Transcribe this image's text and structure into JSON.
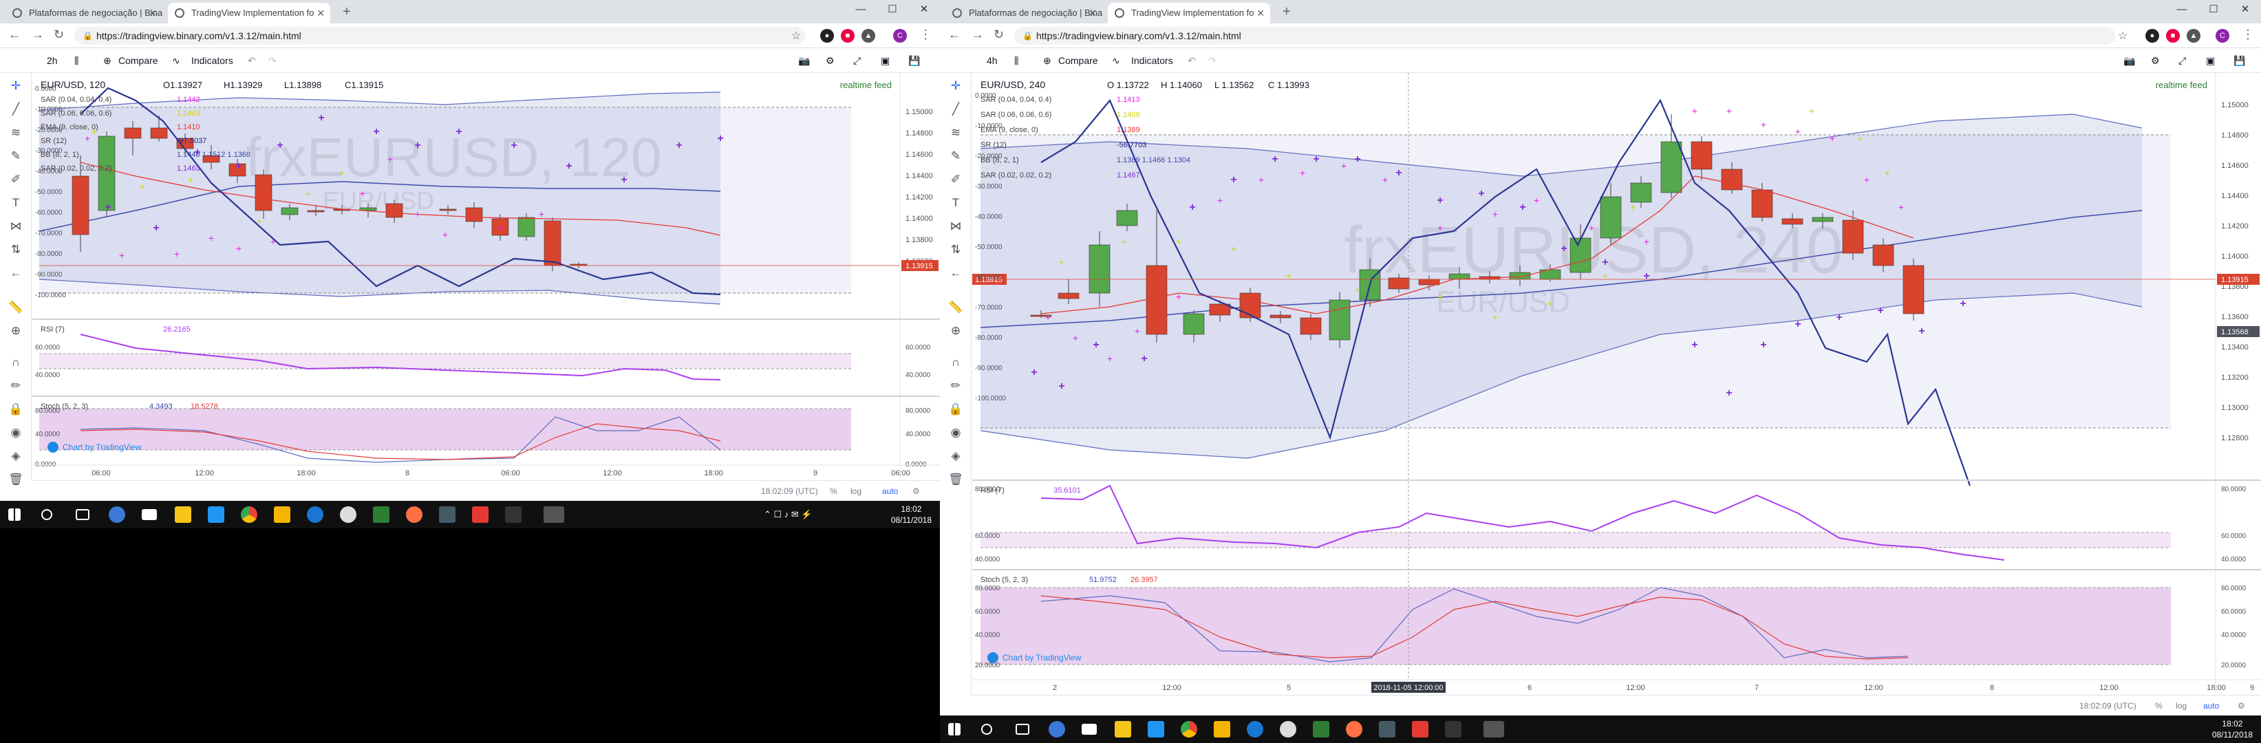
{
  "tabs_common": [
    {
      "title": "Plataformas de negociação | Bina"
    },
    {
      "title": "TradingView Implementation fo"
    }
  ],
  "url": "https://tradingview.binary.com/v1.3.12/main.html",
  "toolbar_labels": {
    "compare": "Compare",
    "indicators": "Indicators"
  },
  "left": {
    "timeframe": "2h",
    "symbol_line": "EUR/USD, 120",
    "ohlc": {
      "o": "O1.13927",
      "h": "H1.13929",
      "l": "L1.13898",
      "c": "C1.13915"
    },
    "realtime": "realtime feed",
    "watermark": "frxEURUSD, 120",
    "watermark_sub": "EUR/USD",
    "legend": [
      {
        "label": "SAR (0.04, 0.04, 0.4)",
        "value": "1.1442",
        "color": "#e91ee9"
      },
      {
        "label": "SAR (0.06, 0.06, 0.6)",
        "value": "1.1443",
        "color": "#d4d400"
      },
      {
        "label": "EMA (9, close, 0)",
        "value": "1.1410",
        "color": "#e53935"
      },
      {
        "label": "SR (12)",
        "value": "-97.5037",
        "color": "#1a237e"
      },
      {
        "label": "BB (8, 2, 1)",
        "value": "1.1440  1.1512  1.1368",
        "color": "#3949ab"
      },
      {
        "label": "SAR (0.02, 0.02, 0.2)",
        "value": "1.1463",
        "color": "#7e2ed4"
      }
    ],
    "price_axis": [
      "1.15000",
      "1.14800",
      "1.14600",
      "1.14400",
      "1.14200",
      "1.14000",
      "1.13800",
      "1.13600"
    ],
    "price_tag": "1.13915",
    "left_axis": [
      "0.0000",
      "-10.0000",
      "-20.0000",
      "-30.0000",
      "-40.0000",
      "-50.0000",
      "-60.0000",
      "-70.0000",
      "-80.0000",
      "-90.0000",
      "-100.0000"
    ],
    "rsi": {
      "label": "RSI (7)",
      "value": "26.2165",
      "axis_left": [
        "60.0000",
        "40.0000"
      ],
      "axis_right": [
        "60.0000",
        "40.0000"
      ]
    },
    "stoch": {
      "label": "Stoch (5, 2, 3)",
      "k": "4.3493",
      "d": "18.5278",
      "axis_left": [
        "80.0000",
        "40.0000",
        "0.0000"
      ],
      "axis_right": [
        "80.0000",
        "40.0000",
        "0.0000"
      ]
    },
    "time_axis": [
      "06:00",
      "12:00",
      "18:00",
      "8",
      "06:00",
      "12:00",
      "18:00",
      "9",
      "06:00"
    ],
    "footer_time": "18:02:09 (UTC)",
    "footer_opts": [
      "%",
      "log",
      "auto"
    ],
    "chart_by": "Chart by TradingView"
  },
  "right": {
    "timeframe": "4h",
    "symbol_line": "EUR/USD, 240",
    "ohlc": {
      "o": "O 1.13722",
      "h": "H 1.14060",
      "l": "L 1.13562",
      "c": "C 1.13993"
    },
    "realtime": "realtime feed",
    "watermark": "frxEURUSD, 240",
    "watermark_sub": "EUR/USD",
    "legend": [
      {
        "label": "SAR (0.04, 0.04, 0.4)",
        "value": "1.1413",
        "color": "#e91ee9"
      },
      {
        "label": "SAR (0.06, 0.06, 0.6)",
        "value": "1.1409",
        "color": "#d4d400"
      },
      {
        "label": "EMA (9, close, 0)",
        "value": "1.1389",
        "color": "#e53935"
      },
      {
        "label": "SR (12)",
        "value": "-56.7703",
        "color": "#1a237e"
      },
      {
        "label": "BB (8, 2, 1)",
        "value": "1.1389  1.1466  1.1304",
        "color": "#3949ab"
      },
      {
        "label": "SAR (0.02, 0.02, 0.2)",
        "value": "1.1467",
        "color": "#7e2ed4"
      }
    ],
    "price_axis": [
      "1.15000",
      "1.14800",
      "1.14600",
      "1.14400",
      "1.14200",
      "1.14000",
      "1.13800",
      "1.13600",
      "1.13400",
      "1.13200",
      "1.13000",
      "1.12800"
    ],
    "price_tag": "1.13915",
    "price_tag2": "1.13568",
    "left_tag": "1.13915",
    "left_axis": [
      "0.0000",
      "-10.0000",
      "-20.0000",
      "-30.0000",
      "-40.0000",
      "-50.0000",
      "-60.0000",
      "-70.0000",
      "-80.0000",
      "-90.0000",
      "-100.0000"
    ],
    "rsi": {
      "label": "RSI (7)",
      "value": "35.6101",
      "axis_left": [
        "80.0000",
        "60.0000",
        "40.0000"
      ],
      "axis_right": [
        "80.0000",
        "60.0000",
        "40.0000"
      ]
    },
    "stoch": {
      "label": "Stoch (5, 2, 3)",
      "k": "51.9752",
      "d": "26.3957",
      "axis_left": [
        "80.0000",
        "60.0000",
        "40.0000",
        "20.0000"
      ],
      "axis_right": [
        "80.0000",
        "60.0000",
        "40.0000",
        "20.0000"
      ]
    },
    "time_axis": [
      "2",
      "12:00",
      "5",
      "2018-11-05 12:00:00",
      "6",
      "12:00",
      "7",
      "12:00",
      "8",
      "12:00",
      "18:00",
      "9"
    ],
    "footer_time": "18:02:09 (UTC)",
    "footer_opts": [
      "%",
      "log",
      "auto"
    ],
    "chart_by": "Chart by TradingView"
  },
  "taskbar": {
    "time": "18:02",
    "date": "08/11/2018"
  }
}
